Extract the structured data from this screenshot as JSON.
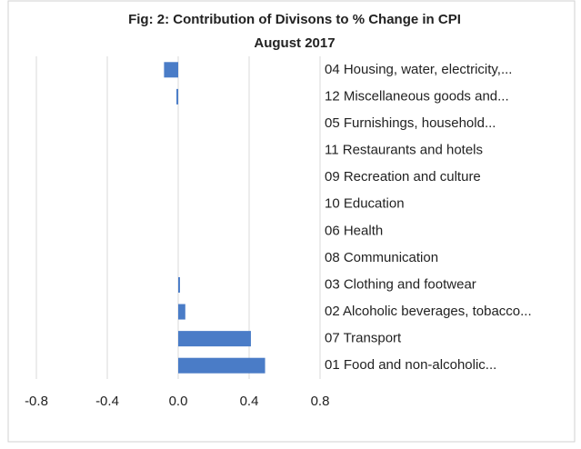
{
  "chart_data": {
    "type": "hbar",
    "title": "Fig: 2: Contribution of Divisons to % Change in CPI",
    "subtitle": "August 2017",
    "categories": [
      "04 Housing, water, electricity,...",
      "12 Miscellaneous goods and...",
      "05 Furnishings, household...",
      "11 Restaurants and hotels",
      "09 Recreation and culture",
      "10 Education",
      "06 Health",
      "08 Communication",
      "03 Clothing and footwear",
      "02 Alcoholic beverages, tobacco...",
      "07 Transport",
      "01 Food and non-alcoholic..."
    ],
    "values": [
      -0.08,
      -0.01,
      0,
      0,
      0,
      0,
      0,
      0,
      0.01,
      0.04,
      0.41,
      0.49
    ],
    "color": "#4a7cc7",
    "xlim": [
      -0.8,
      0.8
    ],
    "xticks": [
      {
        "value": -0.8,
        "label": "-0.8"
      },
      {
        "value": -0.4,
        "label": "-0.4"
      },
      {
        "value": 0,
        "label": "0.0"
      },
      {
        "value": 0.4,
        "label": "0.4"
      },
      {
        "value": 0.8,
        "label": "0.8"
      }
    ],
    "grid": true
  }
}
